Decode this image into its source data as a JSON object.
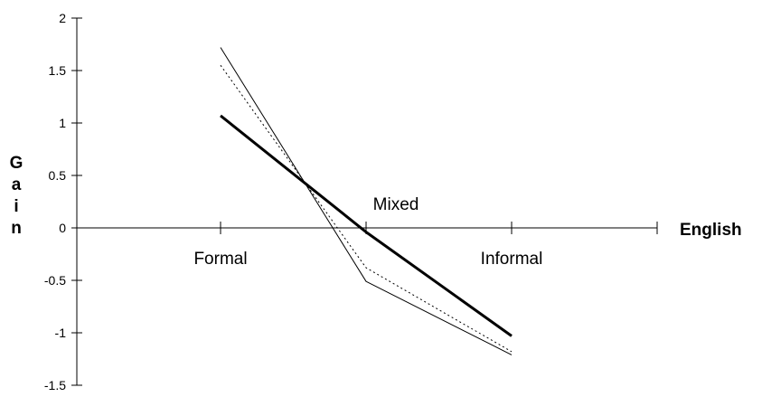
{
  "chart_data": {
    "type": "line",
    "categories": [
      "Formal",
      "Mixed",
      "Informal"
    ],
    "xlabel": "English",
    "ylabel": "Gain",
    "ylim": [
      -1.5,
      2
    ],
    "yticks": [
      "2",
      "1.5",
      "1",
      "0.5",
      "0",
      "-0.5",
      "-1",
      "-1.5"
    ],
    "grid": false,
    "legend": "none",
    "series": [
      {
        "values": [
          1.07,
          -0.04,
          -1.03
        ],
        "style": "thick-solid",
        "color": "#000000"
      },
      {
        "values": [
          1.72,
          -0.51,
          -1.21
        ],
        "style": "thin-solid",
        "color": "#000000"
      },
      {
        "values": [
          1.55,
          -0.38,
          -1.18
        ],
        "style": "dotted",
        "color": "#000000"
      }
    ]
  }
}
